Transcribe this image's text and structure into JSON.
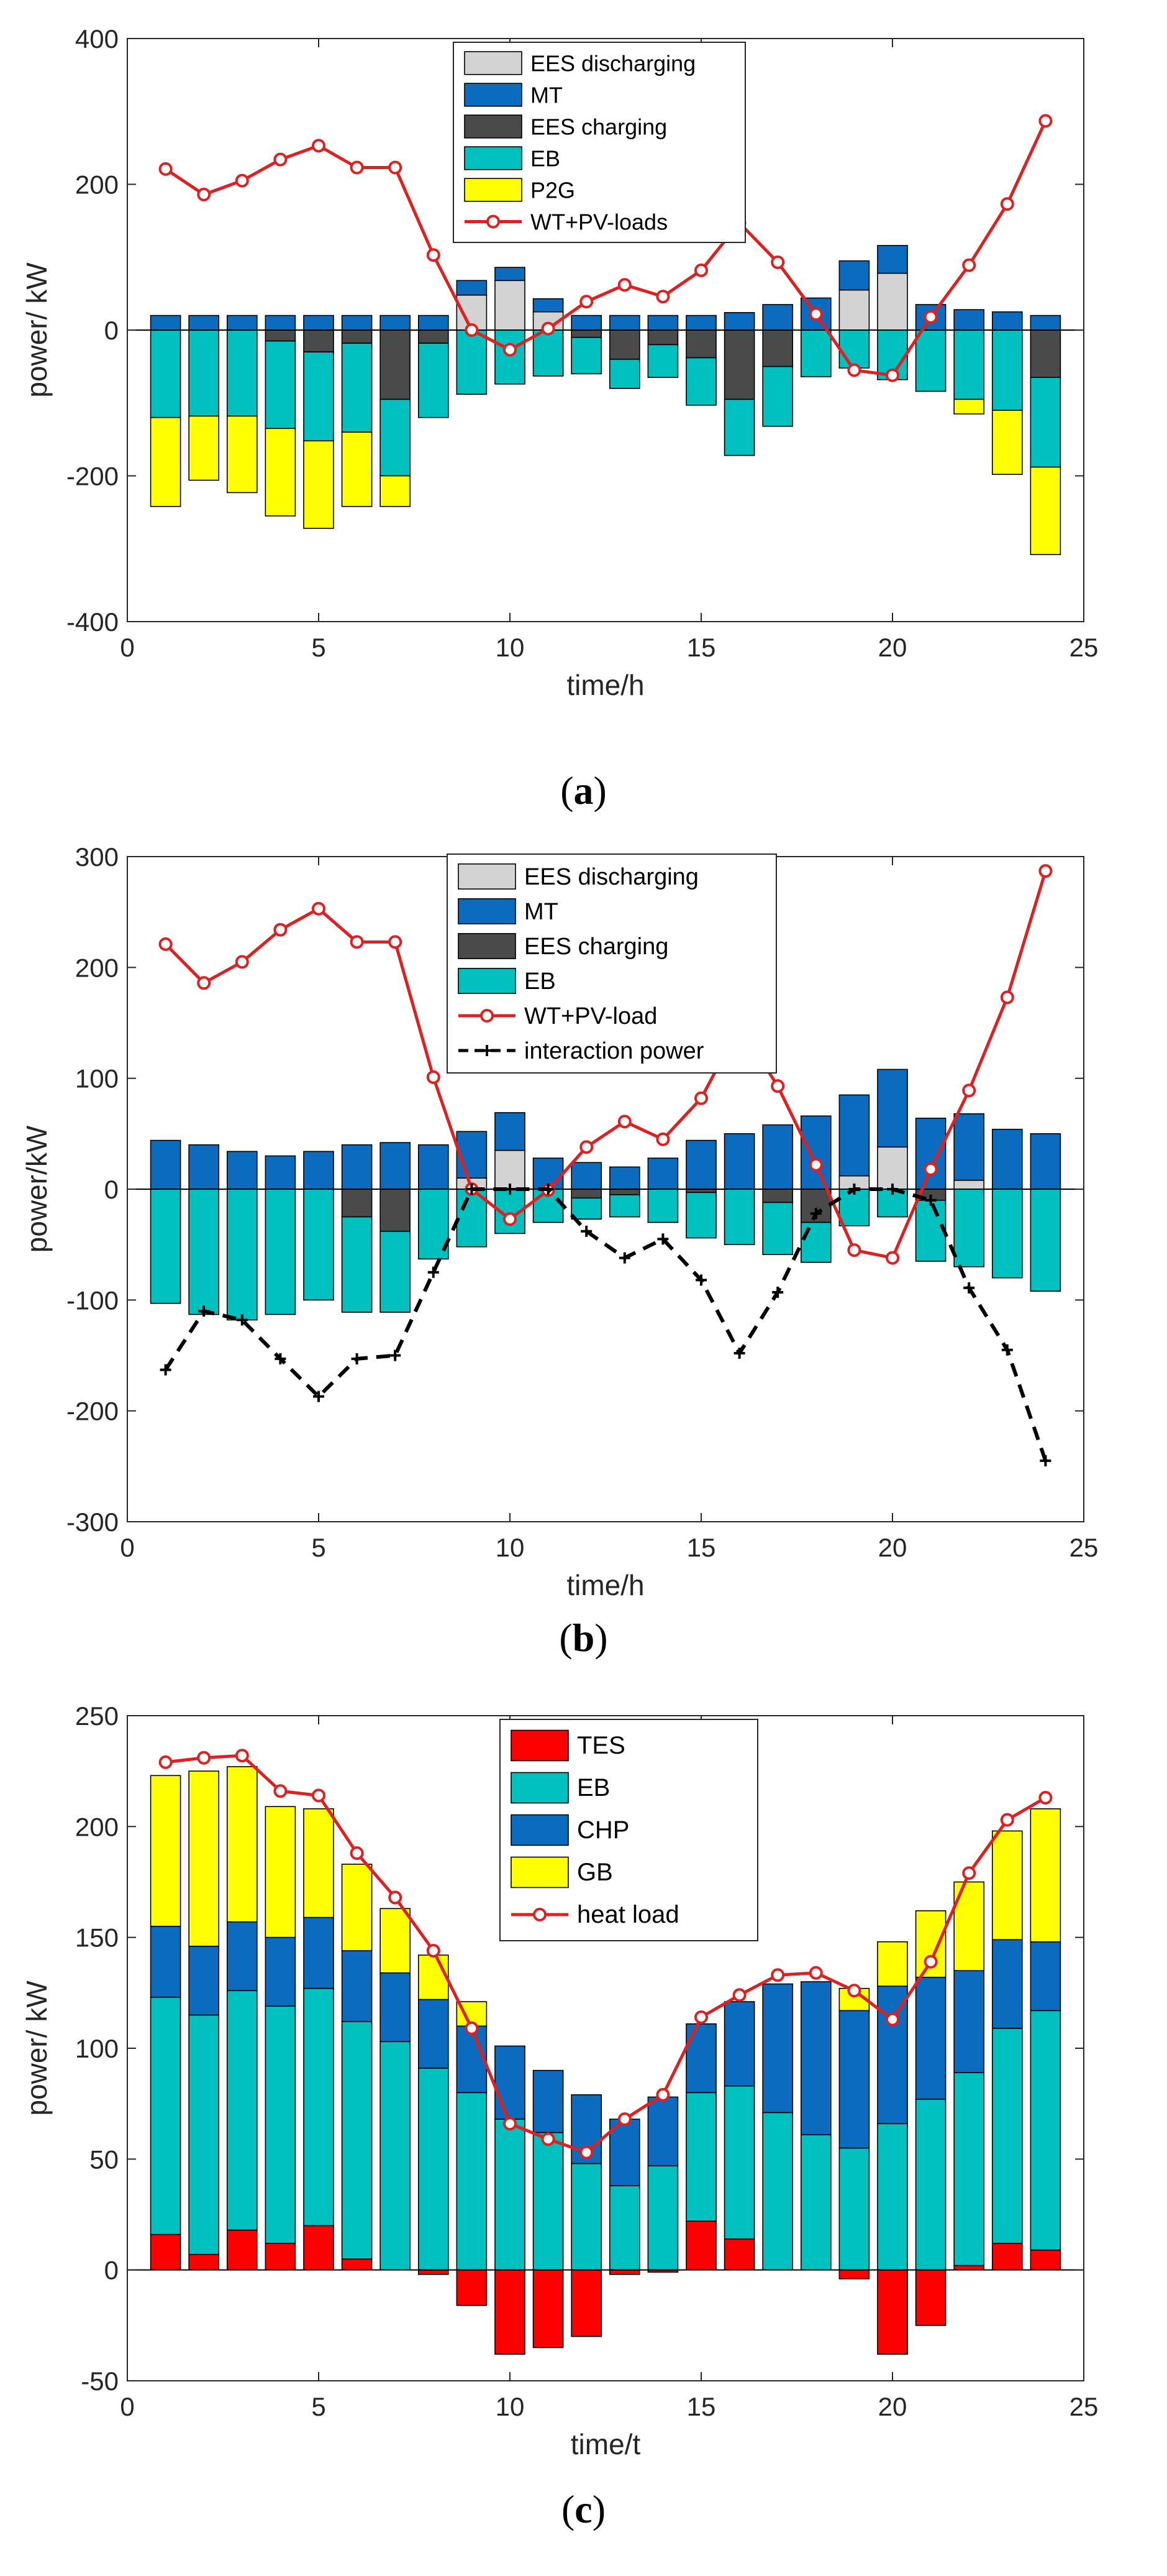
{
  "figure": {
    "panels": [
      {
        "label_open": "(",
        "label_letter": "a",
        "label_close": ")"
      },
      {
        "label_open": "(",
        "label_letter": "b",
        "label_close": ")"
      },
      {
        "label_open": "(",
        "label_letter": "c",
        "label_close": ")"
      }
    ]
  },
  "chart_data": [
    {
      "type": "bar",
      "stacking": "stacked-positive-negative",
      "xlabel": "time/h",
      "ylabel": "power/ kW",
      "xlim": [
        0,
        25
      ],
      "ylim": [
        -400,
        400
      ],
      "xticks": [
        0,
        5,
        10,
        15,
        20,
        25
      ],
      "yticks": [
        -400,
        -200,
        0,
        200,
        400
      ],
      "grid": false,
      "legend_position": "top-center",
      "x": [
        1,
        2,
        3,
        4,
        5,
        6,
        7,
        8,
        9,
        10,
        11,
        12,
        13,
        14,
        15,
        16,
        17,
        18,
        19,
        20,
        21,
        22,
        23,
        24
      ],
      "series": [
        {
          "name": "EES discharging",
          "color": "#d3d3d3",
          "values": [
            0,
            0,
            0,
            0,
            0,
            0,
            0,
            0,
            48,
            68,
            25,
            0,
            0,
            0,
            0,
            0,
            0,
            0,
            55,
            78,
            0,
            0,
            0,
            0
          ]
        },
        {
          "name": "MT",
          "color": "#0b6cbf",
          "values": [
            20,
            20,
            20,
            20,
            20,
            20,
            20,
            20,
            20,
            18,
            18,
            20,
            20,
            20,
            20,
            24,
            35,
            44,
            40,
            38,
            35,
            28,
            25,
            20
          ]
        },
        {
          "name": "EES charging",
          "color": "#4a4a4a",
          "values": [
            0,
            0,
            0,
            -15,
            -30,
            -18,
            -95,
            -18,
            0,
            0,
            0,
            -10,
            -40,
            -20,
            -38,
            -95,
            -50,
            0,
            0,
            0,
            0,
            0,
            0,
            -65
          ]
        },
        {
          "name": "EB",
          "color": "#00c0c0",
          "values": [
            -120,
            -118,
            -118,
            -120,
            -122,
            -122,
            -105,
            -102,
            -88,
            -74,
            -63,
            -50,
            -40,
            -45,
            -65,
            -77,
            -82,
            -64,
            -52,
            -68,
            -84,
            -95,
            -110,
            -123
          ]
        },
        {
          "name": "P2G",
          "color": "#ffff00",
          "values": [
            -122,
            -88,
            -105,
            -120,
            -120,
            -102,
            -42,
            0,
            0,
            0,
            0,
            0,
            0,
            0,
            0,
            0,
            0,
            0,
            0,
            0,
            0,
            -20,
            -88,
            -120
          ]
        }
      ],
      "line": {
        "name": "WT+PV-loads",
        "color": "#e02020",
        "values": [
          221,
          186,
          205,
          234,
          253,
          223,
          223,
          103,
          0,
          -27,
          2,
          39,
          62,
          46,
          82,
          147,
          93,
          22,
          -55,
          -62,
          18,
          89,
          173,
          287
        ]
      }
    },
    {
      "type": "bar",
      "stacking": "stacked-positive-negative",
      "xlabel": "time/h",
      "ylabel": "power/kW",
      "xlim": [
        0,
        25
      ],
      "ylim": [
        -300,
        300
      ],
      "xticks": [
        0,
        5,
        10,
        15,
        20,
        25
      ],
      "yticks": [
        -300,
        -200,
        -100,
        0,
        100,
        200,
        300
      ],
      "grid": false,
      "legend_position": "top-right",
      "x": [
        1,
        2,
        3,
        4,
        5,
        6,
        7,
        8,
        9,
        10,
        11,
        12,
        13,
        14,
        15,
        16,
        17,
        18,
        19,
        20,
        21,
        22,
        23,
        24
      ],
      "series": [
        {
          "name": "EES discharging",
          "color": "#d3d3d3",
          "values": [
            0,
            0,
            0,
            0,
            0,
            0,
            0,
            0,
            10,
            35,
            0,
            0,
            0,
            0,
            0,
            0,
            0,
            0,
            12,
            38,
            0,
            8,
            0,
            0
          ]
        },
        {
          "name": "MT",
          "color": "#0b6cbf",
          "values": [
            44,
            40,
            34,
            30,
            34,
            40,
            42,
            40,
            42,
            34,
            28,
            24,
            20,
            28,
            44,
            50,
            58,
            66,
            73,
            70,
            64,
            60,
            54,
            50
          ]
        },
        {
          "name": "EES charging",
          "color": "#4a4a4a",
          "values": [
            0,
            0,
            0,
            0,
            0,
            -25,
            -38,
            0,
            0,
            0,
            0,
            -8,
            -5,
            0,
            -3,
            0,
            -12,
            -30,
            0,
            0,
            -10,
            0,
            0,
            0
          ]
        },
        {
          "name": "EB",
          "color": "#00c0c0",
          "values": [
            -103,
            -113,
            -118,
            -113,
            -100,
            -86,
            -73,
            -63,
            -52,
            -40,
            -30,
            -19,
            -20,
            -30,
            -41,
            -50,
            -47,
            -36,
            -33,
            -25,
            -55,
            -70,
            -80,
            -92
          ]
        }
      ],
      "lines": [
        {
          "name": "WT+PV-load",
          "color": "#e02020",
          "style": "solid-circle",
          "values": [
            221,
            186,
            205,
            234,
            253,
            223,
            223,
            101,
            0,
            -27,
            -1,
            38,
            61,
            45,
            82,
            147,
            93,
            22,
            -55,
            -62,
            18,
            89,
            173,
            287
          ]
        },
        {
          "name": "interaction power",
          "color": "#000000",
          "style": "dashed-plus",
          "values": [
            -163,
            -110,
            -118,
            -153,
            -187,
            -153,
            -150,
            -75,
            0,
            0,
            0,
            -38,
            -62,
            -45,
            -82,
            -148,
            -93,
            -22,
            0,
            0,
            -10,
            -89,
            -145,
            -245
          ]
        }
      ]
    },
    {
      "type": "bar",
      "stacking": "stacked-positive-negative",
      "xlabel": "time/t",
      "ylabel": "power/ kW",
      "xlim": [
        0,
        25
      ],
      "ylim": [
        -50,
        250
      ],
      "xticks": [
        0,
        5,
        10,
        15,
        20,
        25
      ],
      "yticks": [
        -50,
        0,
        50,
        100,
        150,
        200,
        250
      ],
      "grid": false,
      "legend_position": "top-center",
      "x": [
        1,
        2,
        3,
        4,
        5,
        6,
        7,
        8,
        9,
        10,
        11,
        12,
        13,
        14,
        15,
        16,
        17,
        18,
        19,
        20,
        21,
        22,
        23,
        24
      ],
      "series": [
        {
          "name": "TES",
          "color": "#ff0000",
          "values": [
            16,
            7,
            18,
            12,
            20,
            5,
            0,
            -2,
            -16,
            -38,
            -35,
            -30,
            -2,
            -1,
            22,
            14,
            0,
            0,
            -4,
            -38,
            -25,
            2,
            12,
            9
          ]
        },
        {
          "name": "EB",
          "color": "#00c0c0",
          "values": [
            107,
            108,
            108,
            107,
            107,
            107,
            103,
            91,
            80,
            68,
            62,
            48,
            38,
            47,
            58,
            69,
            71,
            61,
            55,
            66,
            77,
            87,
            97,
            108
          ]
        },
        {
          "name": "CHP",
          "color": "#0b6cbf",
          "values": [
            32,
            31,
            31,
            31,
            32,
            32,
            31,
            31,
            30,
            33,
            28,
            31,
            30,
            31,
            31,
            38,
            58,
            69,
            62,
            62,
            55,
            46,
            40,
            31
          ]
        },
        {
          "name": "GB",
          "color": "#ffff00",
          "values": [
            68,
            79,
            70,
            59,
            49,
            39,
            29,
            20,
            11,
            0,
            0,
            0,
            0,
            0,
            0,
            0,
            0,
            0,
            10,
            20,
            30,
            40,
            49,
            60
          ]
        }
      ],
      "line": {
        "name": "heat load",
        "color": "#e02020",
        "values": [
          229,
          231,
          232,
          216,
          214,
          188,
          168,
          144,
          109,
          66,
          59,
          53,
          68,
          79,
          114,
          124,
          133,
          134,
          126,
          113,
          139,
          179,
          203,
          213
        ]
      }
    }
  ]
}
